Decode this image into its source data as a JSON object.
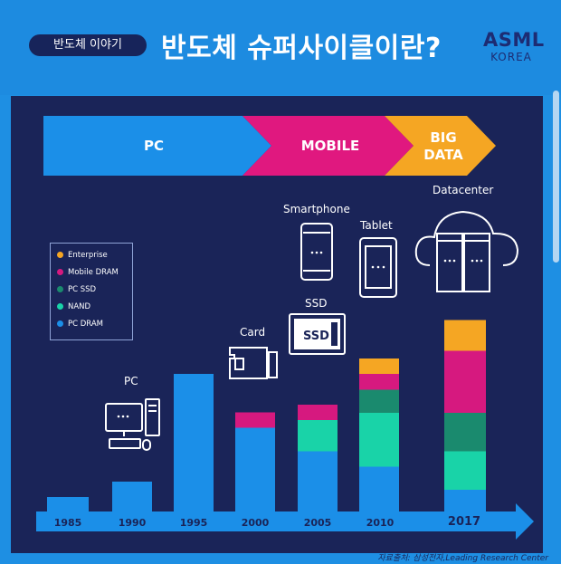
{
  "header": {
    "badge": "반도체 이야기",
    "title": "반도체 슈퍼사이클이란?",
    "logo_line1": "ASML",
    "logo_line2": "KOREA"
  },
  "phases": [
    {
      "label": "PC",
      "color": "#1b8fe8"
    },
    {
      "label": "MOBILE",
      "color": "#e0187f"
    },
    {
      "label": "BIG DATA",
      "label_line1": "BIG",
      "label_line2": "DATA",
      "color": "#f5a623"
    }
  ],
  "devices": {
    "pc": "PC",
    "card": "Card",
    "ssd": "SSD",
    "ssd_chip": "SSD",
    "smartphone": "Smartphone",
    "tablet": "Tablet",
    "datacenter": "Datacenter"
  },
  "legend": [
    {
      "name": "Enterprise",
      "color": "#f5a623"
    },
    {
      "name": "Mobile DRAM",
      "color": "#d6197f"
    },
    {
      "name": "PC SSD",
      "color": "#1a8a6e"
    },
    {
      "name": "NAND",
      "color": "#19d3a8"
    },
    {
      "name": "PC DRAM",
      "color": "#1b8fe8"
    }
  ],
  "chart_data": {
    "type": "bar",
    "stacked": true,
    "categories": [
      "1985",
      "1990",
      "1995",
      "2000",
      "2005",
      "2010",
      "2017"
    ],
    "series": [
      {
        "name": "PC DRAM",
        "values": [
          2,
          4,
          18,
          11,
          8,
          6,
          3
        ],
        "color": "#1b8fe8"
      },
      {
        "name": "NAND",
        "values": [
          0,
          0,
          0,
          0,
          4,
          7,
          5
        ],
        "color": "#19d3a8"
      },
      {
        "name": "PC SSD",
        "values": [
          0,
          0,
          0,
          0,
          0,
          3,
          5
        ],
        "color": "#1a8a6e"
      },
      {
        "name": "Mobile DRAM",
        "values": [
          0,
          0,
          0,
          2,
          2,
          2,
          8
        ],
        "color": "#d6197f"
      },
      {
        "name": "Enterprise",
        "values": [
          0,
          0,
          0,
          0,
          0,
          2,
          4
        ],
        "color": "#f5a623"
      }
    ],
    "xlabel": "",
    "ylabel": "",
    "axis": "arrow",
    "legend_position": "left",
    "grid": false
  },
  "source": "자료출처: 삼성전자,Leading Research Center"
}
